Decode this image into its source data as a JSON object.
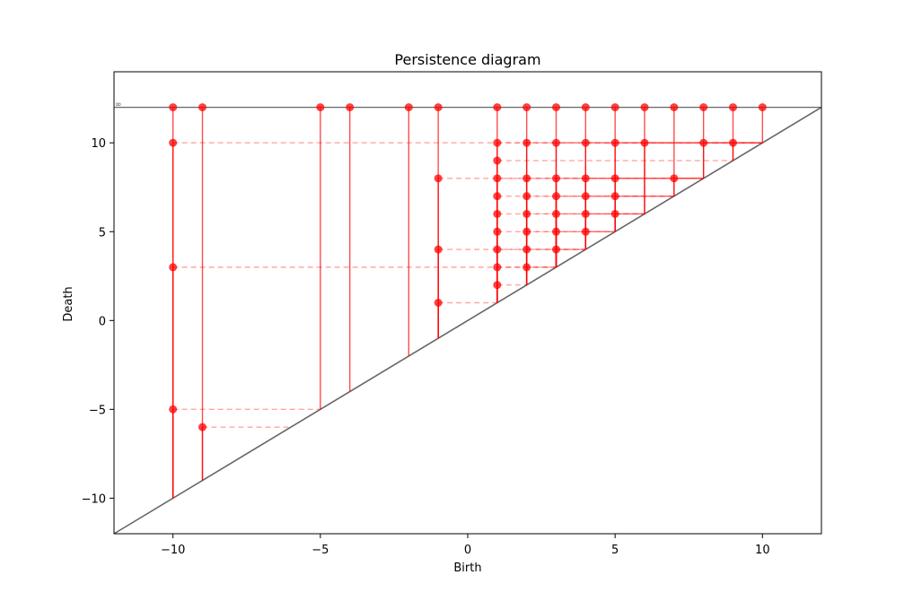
{
  "chart_data": {
    "type": "scatter",
    "title": "Persistence diagram",
    "xlabel": "Birth",
    "ylabel": "Death",
    "xlim": [
      -12,
      12
    ],
    "ylim": [
      -12,
      14
    ],
    "xticks": [
      -10,
      -5,
      0,
      5,
      10
    ],
    "yticks": [
      -10,
      -5,
      0,
      5,
      10
    ],
    "xtick_labels": [
      "−10",
      "−5",
      "0",
      "5",
      "10"
    ],
    "ytick_labels": [
      "−10",
      "−5",
      "0",
      "5",
      "10"
    ],
    "infinity_label": "∞",
    "infinity_y": 12,
    "diagonal": true,
    "grid": false,
    "color": "#ff0000",
    "points": [
      {
        "x": -10,
        "y": 12
      },
      {
        "x": -10,
        "y": 10
      },
      {
        "x": -10,
        "y": 3
      },
      {
        "x": -10,
        "y": -5
      },
      {
        "x": -9,
        "y": 12
      },
      {
        "x": -9,
        "y": -6
      },
      {
        "x": -5,
        "y": 12
      },
      {
        "x": -4,
        "y": 12
      },
      {
        "x": -2,
        "y": 12
      },
      {
        "x": -1,
        "y": 12
      },
      {
        "x": -1,
        "y": 8
      },
      {
        "x": -1,
        "y": 4
      },
      {
        "x": -1,
        "y": 1
      },
      {
        "x": 1,
        "y": 12
      },
      {
        "x": 1,
        "y": 10
      },
      {
        "x": 1,
        "y": 9
      },
      {
        "x": 1,
        "y": 8
      },
      {
        "x": 1,
        "y": 7
      },
      {
        "x": 1,
        "y": 6
      },
      {
        "x": 1,
        "y": 5
      },
      {
        "x": 1,
        "y": 4
      },
      {
        "x": 1,
        "y": 3
      },
      {
        "x": 1,
        "y": 2
      },
      {
        "x": 2,
        "y": 12
      },
      {
        "x": 2,
        "y": 10
      },
      {
        "x": 2,
        "y": 8
      },
      {
        "x": 2,
        "y": 7
      },
      {
        "x": 2,
        "y": 6
      },
      {
        "x": 2,
        "y": 5
      },
      {
        "x": 2,
        "y": 4
      },
      {
        "x": 2,
        "y": 3
      },
      {
        "x": 3,
        "y": 12
      },
      {
        "x": 3,
        "y": 10
      },
      {
        "x": 3,
        "y": 8
      },
      {
        "x": 3,
        "y": 7
      },
      {
        "x": 3,
        "y": 6
      },
      {
        "x": 3,
        "y": 5
      },
      {
        "x": 3,
        "y": 4
      },
      {
        "x": 4,
        "y": 12
      },
      {
        "x": 4,
        "y": 10
      },
      {
        "x": 4,
        "y": 8
      },
      {
        "x": 4,
        "y": 7
      },
      {
        "x": 4,
        "y": 6
      },
      {
        "x": 4,
        "y": 5
      },
      {
        "x": 5,
        "y": 12
      },
      {
        "x": 5,
        "y": 10
      },
      {
        "x": 5,
        "y": 8
      },
      {
        "x": 5,
        "y": 7
      },
      {
        "x": 5,
        "y": 6
      },
      {
        "x": 6,
        "y": 12
      },
      {
        "x": 6,
        "y": 10
      },
      {
        "x": 7,
        "y": 12
      },
      {
        "x": 7,
        "y": 8
      },
      {
        "x": 8,
        "y": 12
      },
      {
        "x": 8,
        "y": 10
      },
      {
        "x": 9,
        "y": 12
      },
      {
        "x": 9,
        "y": 10
      },
      {
        "x": 10,
        "y": 12
      }
    ]
  }
}
